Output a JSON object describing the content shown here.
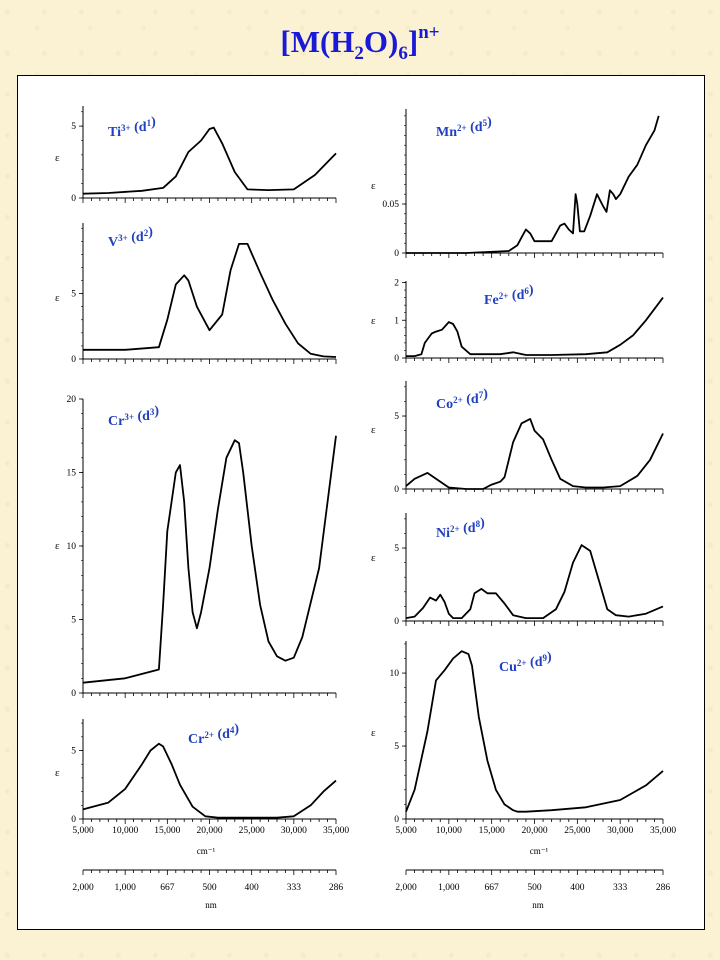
{
  "title": {
    "main": "[M(H",
    "sub2": "2",
    "mid": "O)",
    "sub6": "6",
    "close": "]",
    "sup": "n+"
  },
  "colors": {
    "background": "#fbf2d3",
    "title": "#1a1ad6",
    "ion_label": "#2040c0",
    "curve": "#000000"
  },
  "x_axis": {
    "wavenumber_ticks": [
      "5,000",
      "10,000",
      "15,000",
      "20,000",
      "25,000",
      "30,000",
      "35,000"
    ],
    "wavenumber_unit": "cm⁻¹",
    "nm_ticks": [
      "2,000",
      "1,000",
      "667",
      "500",
      "400",
      "333",
      "286"
    ],
    "nm_unit": "nm",
    "y_symbol": "ε"
  },
  "chart_data": [
    {
      "type": "line",
      "ion": "Ti",
      "charge": "3+",
      "config": "d",
      "d_count": "1",
      "xlim": [
        5000,
        35000
      ],
      "ylim": [
        0,
        6.4
      ],
      "yticks": [
        0,
        5
      ],
      "x": [
        5000,
        8000,
        12000,
        14500,
        16000,
        17500,
        19000,
        20000,
        20500,
        21500,
        23000,
        24500,
        27000,
        30000,
        32500,
        35000
      ],
      "y": [
        0.3,
        0.35,
        0.5,
        0.7,
        1.5,
        3.2,
        4.0,
        4.8,
        4.9,
        3.8,
        1.8,
        0.6,
        0.55,
        0.6,
        1.6,
        3.1
      ]
    },
    {
      "type": "line",
      "ion": "V",
      "charge": "3+",
      "config": "d",
      "d_count": "2",
      "xlim": [
        5000,
        35000
      ],
      "ylim": [
        0,
        10.4
      ],
      "yticks": [
        0,
        5
      ],
      "x": [
        5000,
        10000,
        14000,
        15000,
        16000,
        17000,
        17500,
        18500,
        20000,
        21500,
        22500,
        23500,
        24500,
        26000,
        27500,
        29000,
        30500,
        32000,
        33500,
        35000
      ],
      "y": [
        0.7,
        0.7,
        0.9,
        3.0,
        5.7,
        6.4,
        6.0,
        4.0,
        2.2,
        3.4,
        6.8,
        8.8,
        8.8,
        6.6,
        4.5,
        2.7,
        1.2,
        0.4,
        0.2,
        0.15
      ]
    },
    {
      "type": "line",
      "ion": "Cr",
      "charge": "3+",
      "config": "d",
      "d_count": "3",
      "xlim": [
        5000,
        35000
      ],
      "ylim": [
        0,
        20
      ],
      "yticks": [
        0,
        5,
        10,
        15,
        20
      ],
      "x": [
        5000,
        10000,
        14000,
        14500,
        15000,
        16000,
        16500,
        17000,
        17500,
        18000,
        18500,
        19000,
        20000,
        21000,
        22000,
        23000,
        23500,
        24000,
        25000,
        26000,
        27000,
        28000,
        29000,
        30000,
        31000,
        33000,
        35000
      ],
      "y": [
        0.7,
        1.0,
        1.6,
        6.0,
        11.0,
        15.0,
        15.5,
        13.0,
        8.5,
        5.5,
        4.4,
        5.5,
        8.5,
        12.5,
        16.0,
        17.2,
        17.0,
        15.0,
        10.0,
        6.0,
        3.5,
        2.5,
        2.2,
        2.4,
        3.8,
        8.5,
        17.5
      ]
    },
    {
      "type": "line",
      "ion": "Cr",
      "charge": "2+",
      "config": "d",
      "d_count": "4",
      "xlim": [
        5000,
        35000
      ],
      "ylim": [
        0,
        7.3
      ],
      "yticks": [
        0,
        5
      ],
      "x": [
        5000,
        8000,
        10000,
        12000,
        13000,
        14000,
        14500,
        15500,
        16500,
        18000,
        19500,
        21000,
        24000,
        28000,
        30000,
        32000,
        33500,
        35000
      ],
      "y": [
        0.7,
        1.2,
        2.2,
        4.0,
        5.0,
        5.5,
        5.3,
        4.0,
        2.5,
        0.9,
        0.2,
        0.1,
        0.1,
        0.1,
        0.2,
        1.0,
        2.0,
        2.8
      ]
    },
    {
      "type": "line",
      "ion": "Mn",
      "charge": "2+",
      "config": "d",
      "d_count": "5",
      "xlim": [
        5000,
        35000
      ],
      "ylim": [
        0,
        0.147
      ],
      "yticks": [
        0,
        0.05
      ],
      "x": [
        5000,
        12000,
        17000,
        18000,
        18500,
        19000,
        19500,
        20000,
        21000,
        22000,
        22500,
        23000,
        23500,
        24000,
        24500,
        24800,
        25000,
        25300,
        25800,
        26500,
        27300,
        28000,
        28400,
        28800,
        29200,
        29500,
        30000,
        31000,
        32000,
        33000,
        34000,
        34500
      ],
      "y": [
        0.0,
        0.0,
        0.002,
        0.008,
        0.016,
        0.024,
        0.02,
        0.012,
        0.012,
        0.012,
        0.02,
        0.028,
        0.03,
        0.024,
        0.02,
        0.06,
        0.05,
        0.022,
        0.022,
        0.038,
        0.06,
        0.048,
        0.042,
        0.064,
        0.06,
        0.055,
        0.06,
        0.078,
        0.09,
        0.11,
        0.125,
        0.14
      ]
    },
    {
      "type": "line",
      "ion": "Fe",
      "charge": "2+",
      "config": "d",
      "d_count": "6",
      "xlim": [
        5000,
        35000
      ],
      "ylim": [
        0,
        2.04
      ],
      "yticks": [
        0,
        1,
        2
      ],
      "x": [
        5000,
        6000,
        6800,
        7200,
        8000,
        8500,
        9200,
        10000,
        10500,
        11000,
        11500,
        12500,
        14000,
        16000,
        17500,
        19000,
        22000,
        26000,
        28500,
        30000,
        31500,
        33000,
        35000
      ],
      "y": [
        0.05,
        0.05,
        0.1,
        0.4,
        0.65,
        0.7,
        0.75,
        0.95,
        0.9,
        0.7,
        0.3,
        0.1,
        0.1,
        0.1,
        0.15,
        0.08,
        0.08,
        0.1,
        0.15,
        0.35,
        0.6,
        1.0,
        1.6
      ]
    },
    {
      "type": "line",
      "ion": "Co",
      "charge": "2+",
      "config": "d",
      "d_count": "7",
      "xlim": [
        5000,
        35000
      ],
      "ylim": [
        0,
        7.4
      ],
      "yticks": [
        0,
        5
      ],
      "x": [
        5000,
        6000,
        7500,
        8500,
        10000,
        12000,
        14000,
        15000,
        16000,
        16500,
        17500,
        18500,
        19500,
        20000,
        21000,
        22000,
        23000,
        24500,
        26000,
        28000,
        30000,
        32000,
        33500,
        35000
      ],
      "y": [
        0.2,
        0.7,
        1.1,
        0.7,
        0.1,
        0.0,
        0.0,
        0.3,
        0.5,
        0.8,
        3.2,
        4.5,
        4.8,
        4.0,
        3.4,
        2.0,
        0.7,
        0.2,
        0.1,
        0.1,
        0.2,
        0.9,
        2.0,
        3.8
      ]
    },
    {
      "type": "line",
      "ion": "Ni",
      "charge": "2+",
      "config": "d",
      "d_count": "8",
      "xlim": [
        5000,
        35000
      ],
      "ylim": [
        0,
        7.4
      ],
      "yticks": [
        0,
        5
      ],
      "x": [
        5000,
        6000,
        7000,
        7800,
        8500,
        9000,
        9500,
        10000,
        10500,
        11500,
        12500,
        13000,
        13800,
        14500,
        15500,
        16500,
        17500,
        19000,
        21000,
        22500,
        23500,
        24500,
        25500,
        26500,
        27500,
        28500,
        29500,
        31000,
        33000,
        35000
      ],
      "y": [
        0.2,
        0.3,
        0.9,
        1.6,
        1.4,
        1.8,
        1.3,
        0.5,
        0.2,
        0.2,
        0.8,
        1.9,
        2.2,
        1.9,
        1.9,
        1.2,
        0.4,
        0.2,
        0.2,
        0.8,
        2.0,
        4.0,
        5.2,
        4.8,
        2.8,
        0.8,
        0.4,
        0.3,
        0.5,
        1.0
      ]
    },
    {
      "type": "line",
      "ion": "Cu",
      "charge": "2+",
      "config": "d",
      "d_count": "9",
      "xlim": [
        5000,
        35000
      ],
      "ylim": [
        0,
        12.2
      ],
      "yticks": [
        0,
        5,
        10
      ],
      "x": [
        5000,
        6000,
        7500,
        8500,
        9500,
        10500,
        11500,
        12300,
        12700,
        13500,
        14500,
        15500,
        16500,
        17500,
        18000,
        19000,
        22000,
        26000,
        30000,
        33000,
        35000
      ],
      "y": [
        0.5,
        2.0,
        6.0,
        9.5,
        10.2,
        11.0,
        11.5,
        11.3,
        10.5,
        7.0,
        4.0,
        2.0,
        1.0,
        0.6,
        0.5,
        0.5,
        0.6,
        0.8,
        1.3,
        2.3,
        3.3
      ]
    }
  ]
}
